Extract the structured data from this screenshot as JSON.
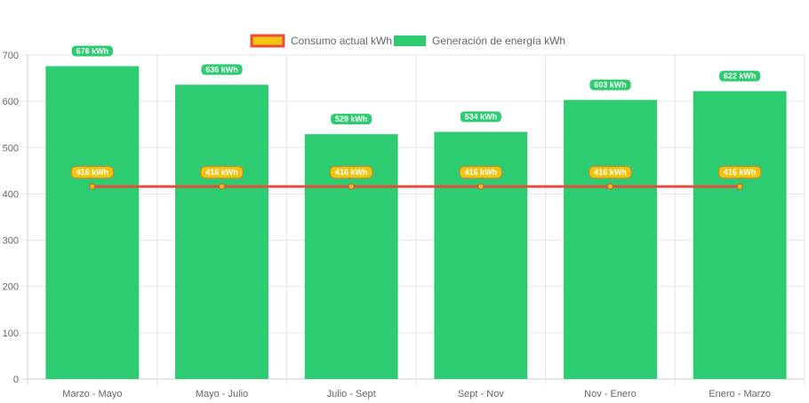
{
  "chart_data": {
    "type": "bar",
    "categories": [
      "Marzo - Mayo",
      "Mayo - Julio",
      "Julio - Sept",
      "Sept - Nov",
      "Nov - Enero",
      "Enero - Marzo"
    ],
    "series": [
      {
        "name": "Generación de energía kWh",
        "kind": "bar",
        "values": [
          676,
          636,
          529,
          534,
          603,
          622
        ],
        "color": "#2ECC71"
      },
      {
        "name": "Consumo actual kWh",
        "kind": "line",
        "values": [
          416,
          416,
          416,
          416,
          416,
          416
        ],
        "color": "#E74C3C",
        "point_color": "#F1C40F"
      }
    ],
    "value_unit": "kWh",
    "ylim": [
      0,
      700
    ],
    "yticks": [
      0,
      100,
      200,
      300,
      400,
      500,
      600,
      700
    ],
    "grid": true,
    "legend_position": "top",
    "title": "",
    "xlabel": "",
    "ylabel": ""
  },
  "legend": {
    "consumo_label": "Consumo actual kWh",
    "generacion_label": "Generación de energía kWh"
  }
}
